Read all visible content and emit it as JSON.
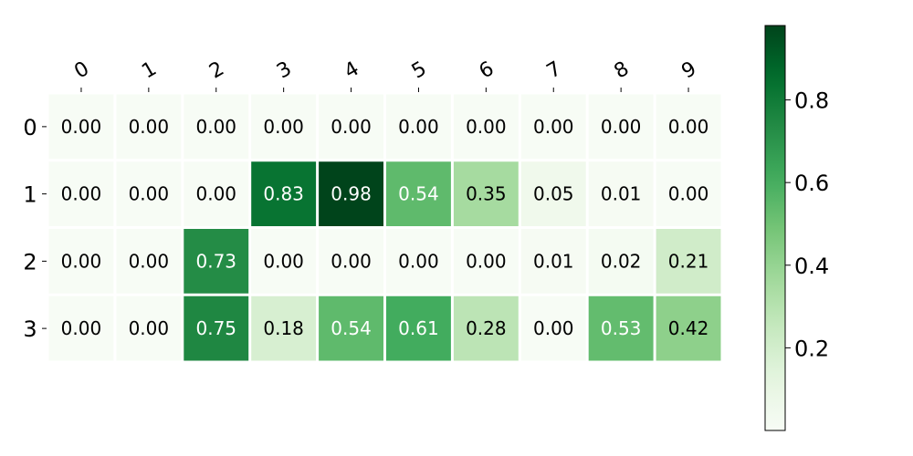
{
  "chart_data": {
    "type": "heatmap",
    "title": "",
    "xlabel": "",
    "ylabel": "",
    "x_categories": [
      "0",
      "1",
      "2",
      "3",
      "4",
      "5",
      "6",
      "7",
      "8",
      "9"
    ],
    "y_categories": [
      "0",
      "1",
      "2",
      "3"
    ],
    "values": [
      [
        0.0,
        0.0,
        0.0,
        0.0,
        0.0,
        0.0,
        0.0,
        0.0,
        0.0,
        0.0
      ],
      [
        0.0,
        0.0,
        0.0,
        0.83,
        0.98,
        0.54,
        0.35,
        0.05,
        0.01,
        0.0
      ],
      [
        0.0,
        0.0,
        0.73,
        0.0,
        0.0,
        0.0,
        0.0,
        0.01,
        0.02,
        0.21
      ],
      [
        0.0,
        0.0,
        0.75,
        0.18,
        0.54,
        0.61,
        0.28,
        0.0,
        0.53,
        0.42
      ]
    ],
    "value_labels": [
      [
        "0.00",
        "0.00",
        "0.00",
        "0.00",
        "0.00",
        "0.00",
        "0.00",
        "0.00",
        "0.00",
        "0.00"
      ],
      [
        "0.00",
        "0.00",
        "0.00",
        "0.83",
        "0.98",
        "0.54",
        "0.35",
        "0.05",
        "0.01",
        "0.00"
      ],
      [
        "0.00",
        "0.00",
        "0.73",
        "0.00",
        "0.00",
        "0.00",
        "0.00",
        "0.01",
        "0.02",
        "0.21"
      ],
      [
        "0.00",
        "0.00",
        "0.75",
        "0.18",
        "0.54",
        "0.61",
        "0.28",
        "0.00",
        "0.53",
        "0.42"
      ]
    ],
    "x_tick_position": "top",
    "x_tick_rotation": "slanted",
    "colormap": "Greens",
    "value_range": [
      0.0,
      0.98
    ],
    "colorbar": {
      "position": "right",
      "ticks": [
        0.2,
        0.4,
        0.6,
        0.8
      ],
      "tick_labels": [
        "0.2",
        "0.4",
        "0.6",
        "0.8"
      ]
    },
    "grid": false
  }
}
